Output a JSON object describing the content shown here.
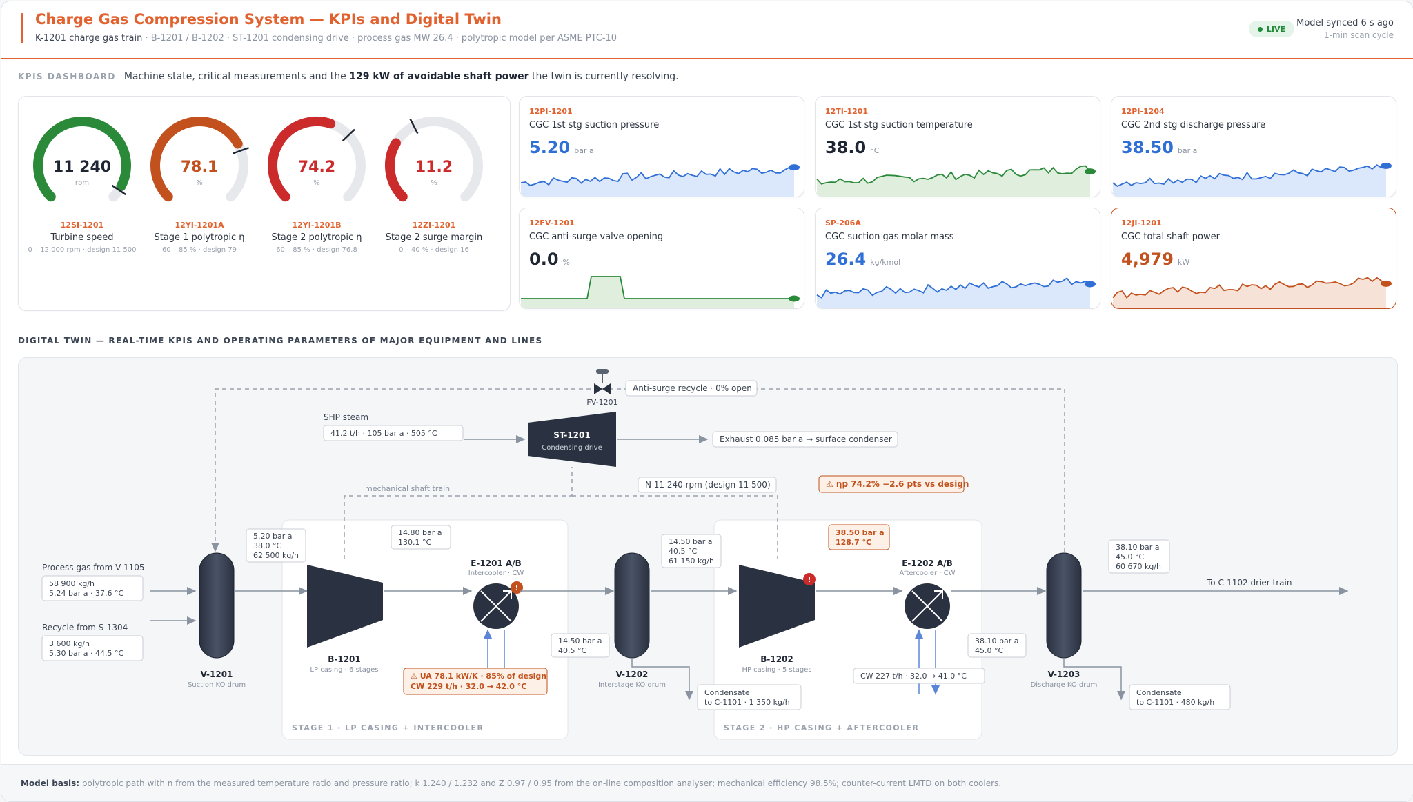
{
  "header": {
    "title": "Charge Gas Compression System — KPIs and Digital Twin",
    "subtitle_strong": "K-1201 charge gas train",
    "subtitle_rest": " · B-1201 / B-1202 · ST-1201 condensing drive · process gas MW 26.4 · polytropic model per ASME PTC-10",
    "live": "LIVE",
    "sync_line1": "Model synced 6 s ago",
    "sync_line2": "1-min scan cycle"
  },
  "kpi_section": {
    "label": "KPIS DASHBOARD",
    "text_before": "Machine state, critical measurements and the ",
    "text_bold": "129 kW of avoidable shaft power",
    "text_after": " the twin is currently resolving."
  },
  "gauges": [
    {
      "value": "11 240",
      "unit": "rpm",
      "tag": "12SI-1201",
      "name": "Turbine speed",
      "range": "0 – 12 000 rpm · design 11 500",
      "fraction": 0.937,
      "design_fraction": 0.958,
      "color": "#2a8a3a",
      "value_color": "#1f2633"
    },
    {
      "value": "78.1",
      "unit": "%",
      "tag": "12YI-1201A",
      "name": "Stage 1 polytropic η",
      "range": "60 – 85 % · design 79",
      "fraction": 0.724,
      "design_fraction": 0.76,
      "color": "#c2511e",
      "value_color": "#c2511e"
    },
    {
      "value": "74.2",
      "unit": "%",
      "tag": "12YI-1201B",
      "name": "Stage 2 polytropic η",
      "range": "60 – 85 % · design 76.8",
      "fraction": 0.568,
      "design_fraction": 0.672,
      "color": "#cc2b2b",
      "value_color": "#cc2b2b"
    },
    {
      "value": "11.2",
      "unit": "%",
      "tag": "12ZI-1201",
      "name": "Stage 2 surge margin",
      "range": "0 – 40 % · design 16",
      "fraction": 0.28,
      "design_fraction": 0.4,
      "color": "#cc2b2b",
      "value_color": "#cc2b2b"
    }
  ],
  "cards": [
    {
      "tag": "12PI-1201",
      "name": "CGC 1st stg suction pressure",
      "value": "5.20",
      "unit": "bar a",
      "color": "#2f6fd6",
      "value_color": "#2f6fd6",
      "fill": "#dbe7fa",
      "kind": "noisy"
    },
    {
      "tag": "12TI-1201",
      "name": "CGC 1st stg suction temperature",
      "value": "38.0",
      "unit": "°C",
      "color": "#2a8a3a",
      "value_color": "#1f2633",
      "fill": "#dfeedd",
      "kind": "noisy"
    },
    {
      "tag": "12PI-1204",
      "name": "CGC 2nd stg discharge pressure",
      "value": "38.50",
      "unit": "bar a",
      "color": "#2f6fd6",
      "value_color": "#2f6fd6",
      "fill": "#dbe7fa",
      "kind": "noisy"
    },
    {
      "tag": "12FV-1201",
      "name": "CGC anti-surge valve opening",
      "value": "0.0",
      "unit": "%",
      "color": "#2a8a3a",
      "value_color": "#1f2633",
      "fill": "#dfeedd",
      "kind": "step"
    },
    {
      "tag": "SP-206A",
      "name": "CGC suction gas molar mass",
      "value": "26.4",
      "unit": "kg/kmol",
      "color": "#2f6fd6",
      "value_color": "#2f6fd6",
      "fill": "#dbe7fa",
      "kind": "noisy"
    },
    {
      "tag": "12JI-1201",
      "name": "CGC total shaft power",
      "value": "4,979",
      "unit": "kW",
      "color": "#c2511e",
      "value_color": "#c2511e",
      "fill": "#f6e2d6",
      "kind": "noisy"
    }
  ],
  "twin": {
    "heading": "DIGITAL TWIN — REAL-TIME KPIS AND OPERATING PARAMETERS OF MAJOR EQUIPMENT AND LINES",
    "antisurge_valve": "FV-1201",
    "antisurge_label": "Anti-surge recycle · 0% open",
    "steam_title": "SHP steam",
    "steam_value": "41.2 t/h · 105 bar a · 505 °C",
    "turbine_name": "ST-1201",
    "turbine_desc": "Condensing drive",
    "exhaust": "Exhaust 0.085 bar a → surface condenser",
    "shaft_label": "mechanical shaft train",
    "speed_box": "N 11 240 rpm (design 11 500)",
    "eta_alert": "⚠ ηp 74.2% −2.6 pts vs design",
    "feed1_title": "Process gas from V-1105",
    "feed1_l1": "58 900 kg/h",
    "feed1_l2": "5.24 bar a · 37.6 °C",
    "feed2_title": "Recycle from S-1304",
    "feed2_l1": "3 600 kg/h",
    "feed2_l2": "5.30 bar a · 44.5 °C",
    "v1201_in_l1": "5.20 bar a",
    "v1201_in_l2": "38.0 °C",
    "v1201_in_l3": "62 500 kg/h",
    "v1201_name": "V-1201",
    "v1201_desc": "Suction KO drum",
    "b1201_out_l1": "14.80 bar a",
    "b1201_out_l2": "130.1 °C",
    "b1201_name": "B-1201",
    "b1201_desc": "LP casing · 6 stages",
    "e1201_name": "E-1201 A/B",
    "e1201_desc": "Intercooler · CW",
    "e1201_alert_l1": "⚠ UA 78.1 kW/K · 85% of design",
    "e1201_alert_l2": "CW 229 t/h · 32.0 → 42.0 °C",
    "v1202_in_l1": "14.50 bar a",
    "v1202_in_l2": "40.5 °C",
    "v1202_name": "V-1202",
    "v1202_desc": "Interstage KO drum",
    "cond1_l1": "Condensate",
    "cond1_l2": "to C-1101 · 1 350 kg/h",
    "b1202_in_l1": "14.50 bar a",
    "b1202_in_l2": "40.5 °C",
    "b1202_in_l3": "61 150 kg/h",
    "b1202_out_l1": "38.50 bar a",
    "b1202_out_l2": "128.7 °C",
    "b1202_name": "B-1202",
    "b1202_desc": "HP casing · 5 stages",
    "e1202_name": "E-1202 A/B",
    "e1202_desc": "Aftercooler · CW",
    "cw2_label": "CW 227 t/h · 32.0 → 41.0 °C",
    "e1202_out_l1": "38.10 bar a",
    "e1202_out_l2": "45.0 °C",
    "v1203_name": "V-1203",
    "v1203_desc": "Discharge KO drum",
    "v1203_out_l1": "38.10 bar a",
    "v1203_out_l2": "45.0 °C",
    "v1203_out_l3": "60 670 kg/h",
    "product": "To C-1102 drier train",
    "cond2_l1": "Condensate",
    "cond2_l2": "to C-1101 · 480 kg/h",
    "stage1_label": "STAGE 1 · LP CASING + INTERCOOLER",
    "stage2_label": "STAGE 2 · HP CASING + AFTERCOOLER"
  },
  "footer": {
    "bold": "Model basis:",
    "text": " polytropic path with n from the measured temperature ratio and pressure ratio; k 1.240 / 1.232 and Z 0.97 / 0.95 from the on-line composition analyser; mechanical efficiency 98.5%; counter-current LMTD on both coolers."
  }
}
